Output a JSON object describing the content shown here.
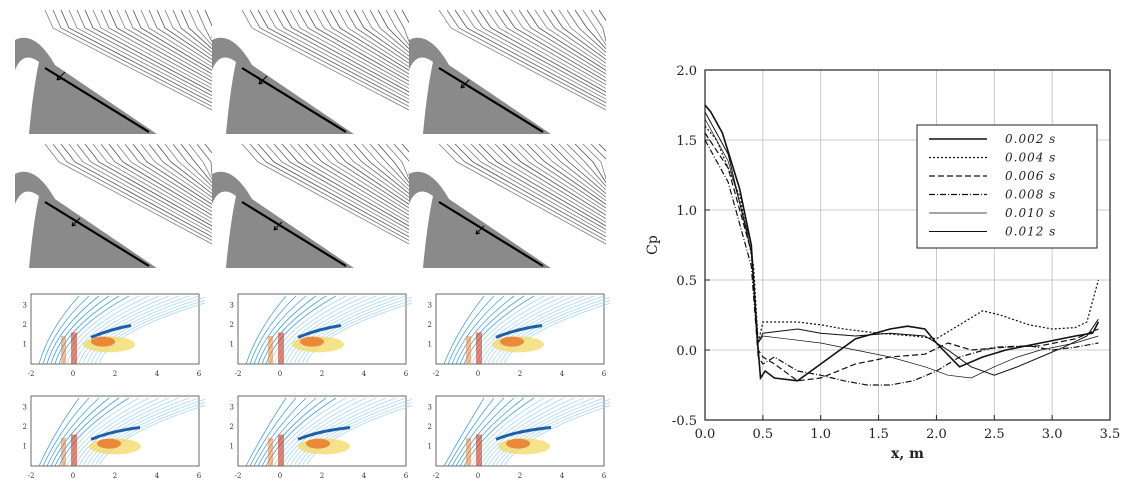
{
  "colors": {
    "flow_dark": "#1a1a1a",
    "contour_blue": "#2f8fd0",
    "contour_light_blue": "#9fd0ee",
    "contour_orange": "#e8792a",
    "contour_yellow": "#f2d65a",
    "contour_red": "#c8381e",
    "axis": "#222222",
    "grid": "#bdbdbd"
  },
  "flow_panels": {
    "rows": 2,
    "cols": 3
  },
  "contour_panels": {
    "rows": 2,
    "cols": 3,
    "x_ticks": [
      "-2",
      "0",
      "2",
      "4",
      "6"
    ],
    "y_ticks": [
      "1",
      "2",
      "3"
    ]
  },
  "chart_data": {
    "type": "line",
    "title": "",
    "xlabel": "x, m",
    "ylabel": "Cp",
    "xlim": [
      0.0,
      3.5
    ],
    "ylim": [
      -0.5,
      2.0
    ],
    "xticks": [
      "0.0",
      "0.5",
      "1.0",
      "1.5",
      "2.0",
      "2.5",
      "3.0",
      "3.5"
    ],
    "yticks": [
      "-0.5",
      "0.0",
      "0.5",
      "1.0",
      "1.5",
      "2.0"
    ],
    "grid": true,
    "legend_position": "top-right",
    "series": [
      {
        "name": "0.002 s",
        "dash": "",
        "width": 1.6,
        "points": [
          [
            0.0,
            1.75
          ],
          [
            0.05,
            1.7
          ],
          [
            0.15,
            1.55
          ],
          [
            0.3,
            1.15
          ],
          [
            0.4,
            0.75
          ],
          [
            0.45,
            0.1
          ],
          [
            0.48,
            -0.2
          ],
          [
            0.52,
            -0.15
          ],
          [
            0.6,
            -0.2
          ],
          [
            0.8,
            -0.22
          ],
          [
            1.0,
            -0.1
          ],
          [
            1.3,
            0.08
          ],
          [
            1.6,
            0.15
          ],
          [
            1.75,
            0.17
          ],
          [
            1.9,
            0.15
          ],
          [
            2.0,
            0.05
          ],
          [
            2.2,
            -0.12
          ],
          [
            2.4,
            -0.05
          ],
          [
            2.6,
            0.0
          ],
          [
            2.9,
            0.05
          ],
          [
            3.2,
            0.1
          ],
          [
            3.35,
            0.12
          ],
          [
            3.4,
            0.2
          ]
        ]
      },
      {
        "name": "0.004 s",
        "dash": "2,2",
        "width": 1.2,
        "points": [
          [
            0.0,
            1.6
          ],
          [
            0.1,
            1.5
          ],
          [
            0.3,
            1.1
          ],
          [
            0.42,
            0.6
          ],
          [
            0.46,
            0.05
          ],
          [
            0.5,
            0.2
          ],
          [
            0.6,
            0.2
          ],
          [
            0.8,
            0.2
          ],
          [
            1.0,
            0.18
          ],
          [
            1.2,
            0.15
          ],
          [
            1.5,
            0.12
          ],
          [
            1.8,
            0.1
          ],
          [
            2.0,
            0.08
          ],
          [
            2.2,
            0.18
          ],
          [
            2.4,
            0.28
          ],
          [
            2.55,
            0.25
          ],
          [
            2.8,
            0.18
          ],
          [
            3.0,
            0.15
          ],
          [
            3.2,
            0.16
          ],
          [
            3.3,
            0.2
          ],
          [
            3.4,
            0.5
          ]
        ]
      },
      {
        "name": "0.006 s",
        "dash": "6,3",
        "width": 1.2,
        "points": [
          [
            0.0,
            1.55
          ],
          [
            0.2,
            1.3
          ],
          [
            0.4,
            0.7
          ],
          [
            0.46,
            0.0
          ],
          [
            0.5,
            -0.05
          ],
          [
            0.6,
            -0.1
          ],
          [
            0.8,
            -0.22
          ],
          [
            1.0,
            -0.2
          ],
          [
            1.3,
            -0.1
          ],
          [
            1.6,
            -0.05
          ],
          [
            1.9,
            -0.03
          ],
          [
            2.1,
            0.05
          ],
          [
            2.3,
            0.0
          ],
          [
            2.6,
            0.02
          ],
          [
            2.9,
            0.03
          ],
          [
            3.2,
            0.08
          ],
          [
            3.4,
            0.15
          ]
        ]
      },
      {
        "name": "0.008 s",
        "dash": "6,2,1,2",
        "width": 1.2,
        "points": [
          [
            0.0,
            1.5
          ],
          [
            0.2,
            1.2
          ],
          [
            0.4,
            0.6
          ],
          [
            0.46,
            -0.05
          ],
          [
            0.5,
            -0.1
          ],
          [
            0.6,
            -0.05
          ],
          [
            0.8,
            -0.15
          ],
          [
            1.0,
            -0.18
          ],
          [
            1.2,
            -0.22
          ],
          [
            1.4,
            -0.25
          ],
          [
            1.6,
            -0.25
          ],
          [
            1.8,
            -0.22
          ],
          [
            2.0,
            -0.15
          ],
          [
            2.2,
            -0.05
          ],
          [
            2.5,
            0.02
          ],
          [
            2.8,
            0.03
          ],
          [
            3.0,
            0.0
          ],
          [
            3.2,
            0.02
          ],
          [
            3.4,
            0.05
          ]
        ]
      },
      {
        "name": "0.010 s",
        "dash": "",
        "width": 0.7,
        "points": [
          [
            0.0,
            1.65
          ],
          [
            0.2,
            1.35
          ],
          [
            0.4,
            0.75
          ],
          [
            0.46,
            0.05
          ],
          [
            0.5,
            0.1
          ],
          [
            0.7,
            0.08
          ],
          [
            1.0,
            0.05
          ],
          [
            1.3,
            0.0
          ],
          [
            1.6,
            -0.05
          ],
          [
            1.9,
            -0.12
          ],
          [
            2.1,
            -0.18
          ],
          [
            2.3,
            -0.2
          ],
          [
            2.5,
            -0.12
          ],
          [
            2.7,
            -0.05
          ],
          [
            2.9,
            0.0
          ],
          [
            3.2,
            0.05
          ],
          [
            3.4,
            0.1
          ]
        ]
      },
      {
        "name": "0.012 s",
        "dash": "",
        "width": 1.0,
        "points": [
          [
            0.0,
            1.7
          ],
          [
            0.2,
            1.4
          ],
          [
            0.4,
            0.7
          ],
          [
            0.46,
            0.05
          ],
          [
            0.5,
            0.12
          ],
          [
            0.8,
            0.15
          ],
          [
            1.0,
            0.12
          ],
          [
            1.3,
            0.1
          ],
          [
            1.6,
            0.12
          ],
          [
            1.9,
            0.1
          ],
          [
            2.1,
            0.0
          ],
          [
            2.3,
            -0.12
          ],
          [
            2.5,
            -0.18
          ],
          [
            2.7,
            -0.12
          ],
          [
            2.9,
            -0.05
          ],
          [
            3.1,
            0.02
          ],
          [
            3.3,
            0.1
          ],
          [
            3.4,
            0.22
          ]
        ]
      }
    ]
  }
}
